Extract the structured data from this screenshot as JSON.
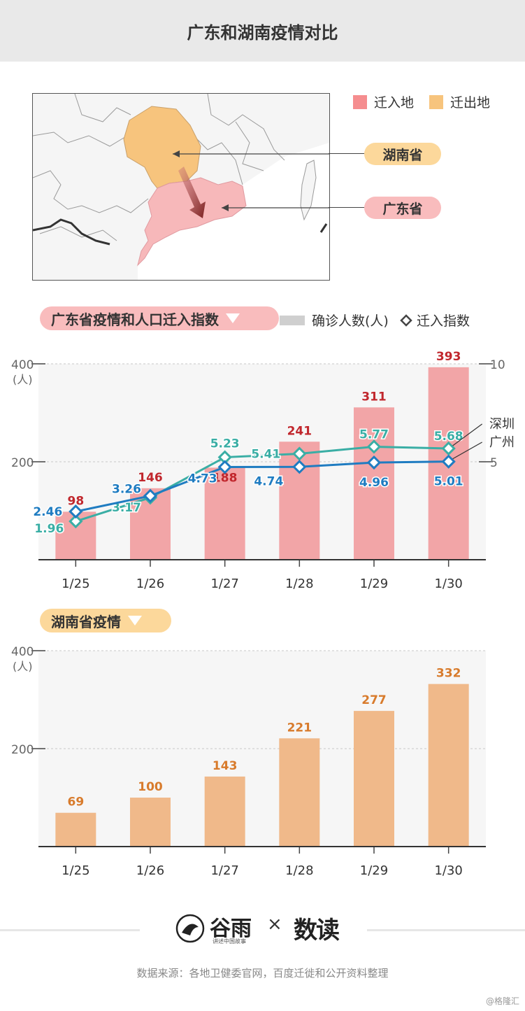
{
  "page": {
    "title": "广东和湖南疫情对比"
  },
  "map": {
    "legend": [
      {
        "label": "迁入地",
        "color": "#f58d8f"
      },
      {
        "label": "迁出地",
        "color": "#f7c47d"
      }
    ],
    "labels": {
      "hunan": "湖南省",
      "guangdong": "广东省"
    },
    "colors": {
      "hunan": "#f7c47d",
      "guangdong": "#f7b8ba",
      "hunan_pill": "#fcd89b",
      "guangdong_pill": "#f9bcbd"
    }
  },
  "legend": {
    "bar_label": "确诊人数(人)",
    "line_label": "迁入指数"
  },
  "chart_data": [
    {
      "type": "bar",
      "title": "广东省疫情和人口迁入指数",
      "categories": [
        "1/25",
        "1/26",
        "1/27",
        "1/28",
        "1/29",
        "1/30"
      ],
      "values": [
        98,
        146,
        188,
        241,
        311,
        393
      ],
      "ylim": [
        0,
        400
      ],
      "yticks": [
        200,
        400
      ],
      "ylabel": "(人)",
      "y2lim": [
        0,
        10
      ],
      "y2ticks": [
        5,
        10
      ],
      "bar_color": "#f2a5a7",
      "label_color": "#c1272d",
      "grid": true,
      "series": [
        {
          "name": "深圳",
          "type": "line",
          "axis": "y2",
          "color": "#3aaea5",
          "values": [
            1.96,
            3.17,
            5.23,
            5.41,
            5.77,
            5.68
          ]
        },
        {
          "name": "广州",
          "type": "line",
          "axis": "y2",
          "color": "#1f7cc1",
          "values": [
            2.46,
            3.26,
            4.73,
            4.74,
            4.96,
            5.01
          ]
        }
      ]
    },
    {
      "type": "bar",
      "title": "湖南省疫情",
      "categories": [
        "1/25",
        "1/26",
        "1/27",
        "1/28",
        "1/29",
        "1/30"
      ],
      "values": [
        69,
        100,
        143,
        221,
        277,
        332
      ],
      "ylim": [
        0,
        400
      ],
      "yticks": [
        200,
        400
      ],
      "ylabel": "(人)",
      "bar_color": "#f0b98a",
      "label_color": "#d87b2c",
      "grid": true
    }
  ],
  "footer": {
    "brand1": "谷雨",
    "brand1_sub": "讲述中国故事",
    "times": "×",
    "brand2": "数读",
    "source": "数据来源：各地卫健委官网，百度迁徙和公开资料整理",
    "credit": "@格隆汇"
  }
}
